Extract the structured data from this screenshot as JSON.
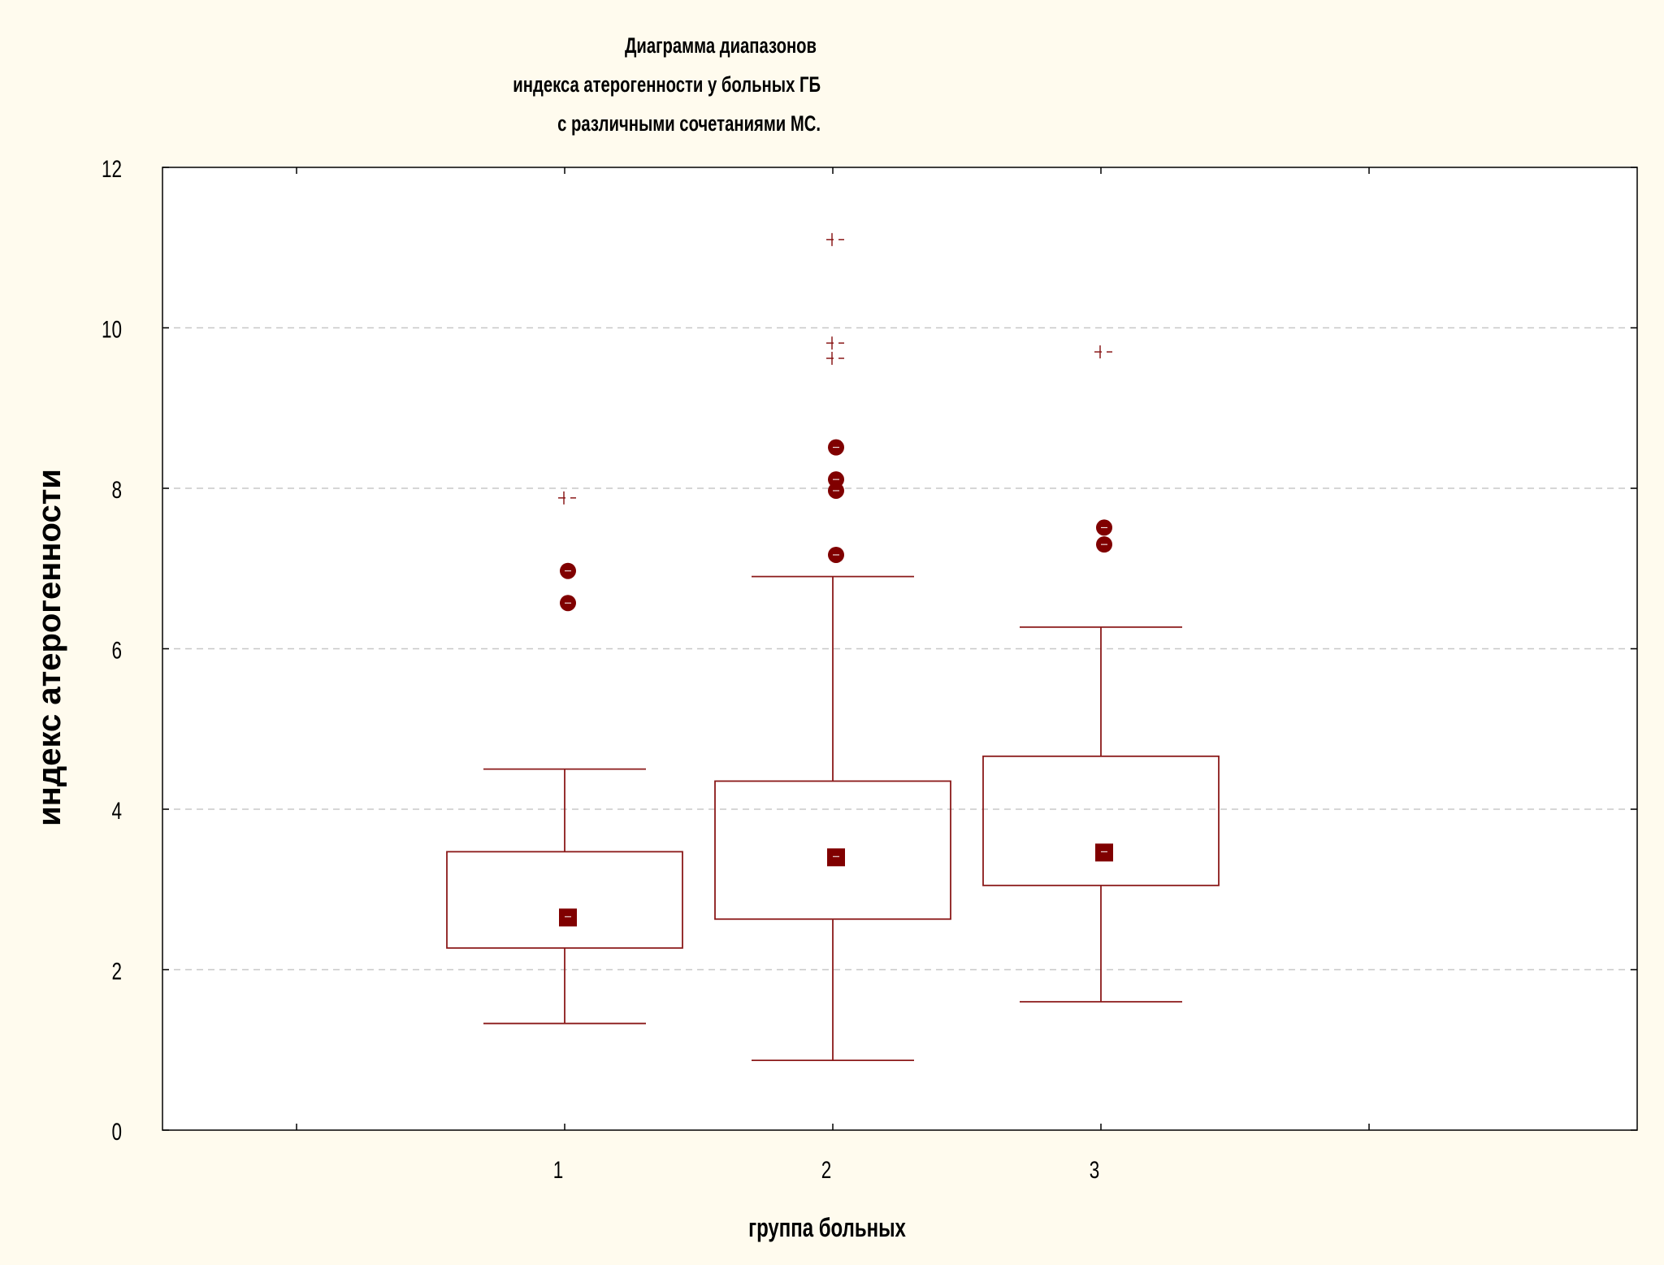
{
  "chart_data": {
    "type": "boxplot",
    "title_lines": [
      "Диаграмма диапазонов",
      "индекса атерогенности у больных ГБ",
      "с различными сочетаниями МС."
    ],
    "xlabel": "группа больных",
    "ylabel": "индекс атерогенности",
    "ylim": [
      0,
      12
    ],
    "y_ticks": [
      "0",
      "2",
      "4",
      "6",
      "8",
      "10",
      "12"
    ],
    "x_ticks": [
      "1",
      "2",
      "3"
    ],
    "grid": "horizontal dashed",
    "colors": {
      "box": "#8b1a1a",
      "marker": "#800000",
      "background": "#fffbee",
      "plot_area": "#ffffff",
      "grid": "#c8c8c8"
    },
    "groups": [
      {
        "category": "1",
        "whisker_low": 1.33,
        "q1": 2.27,
        "median": 2.65,
        "q3": 3.47,
        "whisker_high": 4.5,
        "outliers": [
          6.57,
          6.97
        ],
        "extremes": [
          7.88
        ]
      },
      {
        "category": "2",
        "whisker_low": 0.87,
        "q1": 2.63,
        "median": 3.4,
        "q3": 4.35,
        "whisker_high": 6.9,
        "outliers": [
          7.17,
          7.97,
          8.11,
          8.51
        ],
        "extremes": [
          9.62,
          9.81,
          11.1
        ]
      },
      {
        "category": "3",
        "whisker_low": 1.6,
        "q1": 3.05,
        "median": 3.46,
        "q3": 4.66,
        "whisker_high": 6.27,
        "outliers": [
          7.3,
          7.51
        ],
        "extremes": [
          9.7
        ]
      }
    ]
  }
}
